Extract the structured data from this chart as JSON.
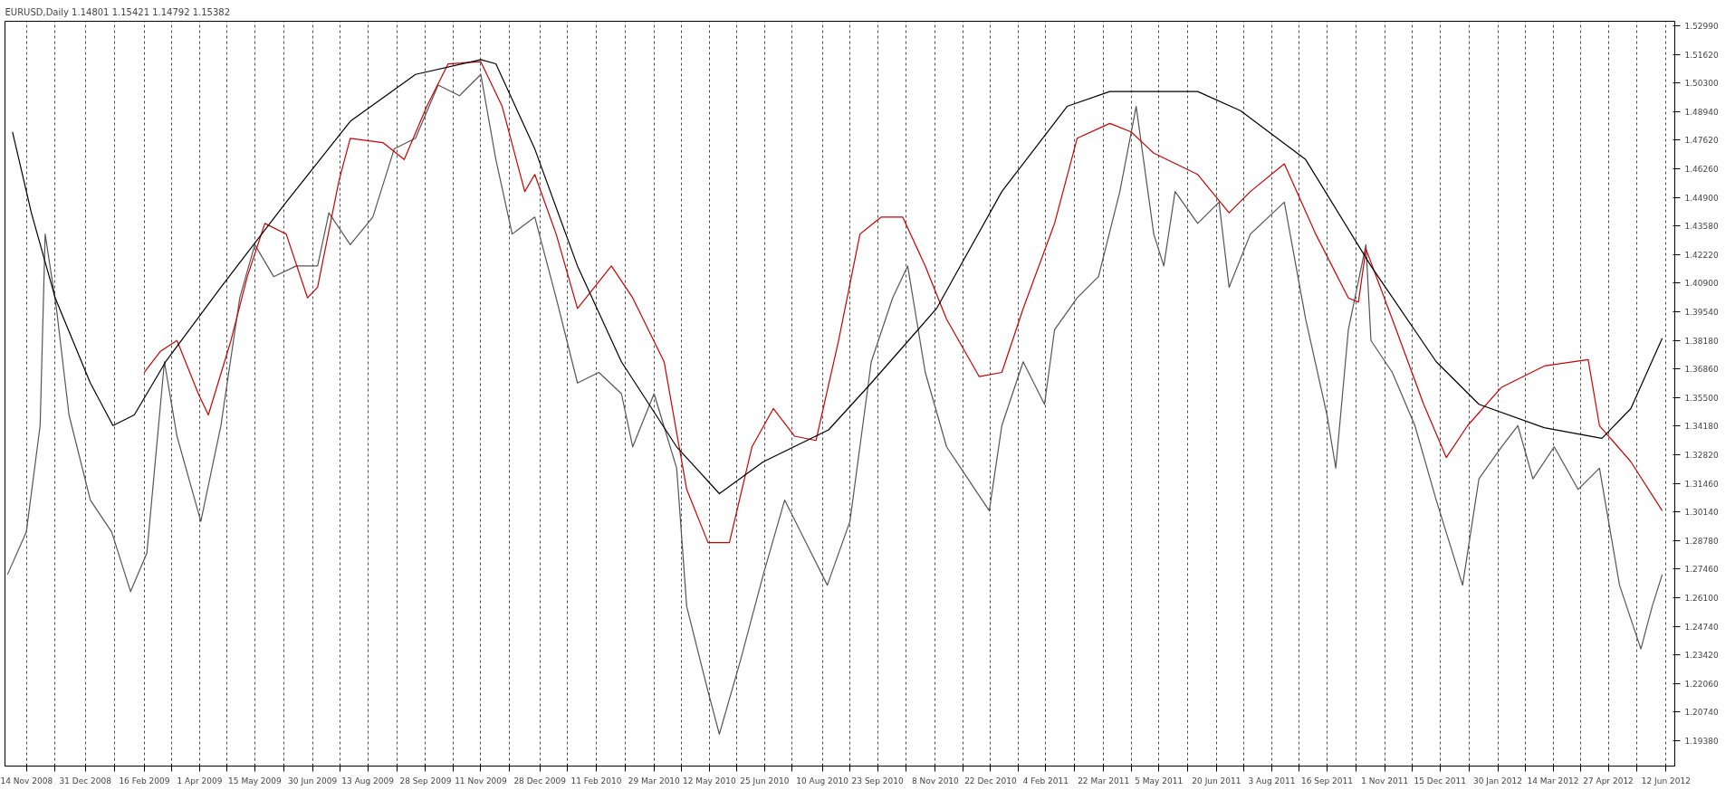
{
  "chart_data": {
    "type": "line",
    "title": "EURUSD,Daily  1.14801 1.15421 1.14792 1.15382",
    "xlim": [
      "2008-10-28",
      "2012-06-19"
    ],
    "ylim": [
      1.182,
      1.532
    ],
    "xticks": [
      {
        "value": "2008-11-14",
        "label": "14 Nov 2008"
      },
      {
        "value": "2008-12-07",
        "label": null
      },
      {
        "value": "2008-12-31",
        "label": "31 Dec 2008"
      },
      {
        "value": "2009-01-23",
        "label": null
      },
      {
        "value": "2009-02-16",
        "label": "16 Feb 2009"
      },
      {
        "value": "2009-03-10",
        "label": null
      },
      {
        "value": "2009-04-01",
        "label": "1 Apr 2009"
      },
      {
        "value": "2009-04-23",
        "label": null
      },
      {
        "value": "2009-05-15",
        "label": "15 May 2009"
      },
      {
        "value": "2009-06-07",
        "label": null
      },
      {
        "value": "2009-06-30",
        "label": "30 Jun 2009"
      },
      {
        "value": "2009-07-22",
        "label": null
      },
      {
        "value": "2009-08-13",
        "label": "13 Aug 2009"
      },
      {
        "value": "2009-09-05",
        "label": null
      },
      {
        "value": "2009-09-28",
        "label": "28 Sep 2009"
      },
      {
        "value": "2009-10-20",
        "label": null
      },
      {
        "value": "2009-11-11",
        "label": "11 Nov 2009"
      },
      {
        "value": "2009-12-04",
        "label": null
      },
      {
        "value": "2009-12-28",
        "label": "28 Dec 2009"
      },
      {
        "value": "2010-01-19",
        "label": null
      },
      {
        "value": "2010-02-11",
        "label": "11 Feb 2010"
      },
      {
        "value": "2010-03-06",
        "label": null
      },
      {
        "value": "2010-03-29",
        "label": "29 Mar 2010"
      },
      {
        "value": "2010-04-20",
        "label": null
      },
      {
        "value": "2010-05-12",
        "label": "12 May 2010"
      },
      {
        "value": "2010-06-03",
        "label": null
      },
      {
        "value": "2010-06-25",
        "label": "25 Jun 2010"
      },
      {
        "value": "2010-07-17",
        "label": null
      },
      {
        "value": "2010-08-10",
        "label": "10 Aug 2010"
      },
      {
        "value": "2010-09-01",
        "label": null
      },
      {
        "value": "2010-09-23",
        "label": "23 Sep 2010"
      },
      {
        "value": "2010-10-16",
        "label": null
      },
      {
        "value": "2010-11-08",
        "label": "8 Nov 2010"
      },
      {
        "value": "2010-11-30",
        "label": null
      },
      {
        "value": "2010-12-22",
        "label": "22 Dec 2010"
      },
      {
        "value": "2011-01-13",
        "label": null
      },
      {
        "value": "2011-02-04",
        "label": "4 Feb 2011"
      },
      {
        "value": "2011-02-27",
        "label": null
      },
      {
        "value": "2011-03-22",
        "label": "22 Mar 2011"
      },
      {
        "value": "2011-04-13",
        "label": null
      },
      {
        "value": "2011-05-05",
        "label": "5 May 2011"
      },
      {
        "value": "2011-05-28",
        "label": null
      },
      {
        "value": "2011-06-20",
        "label": "20 Jun 2011"
      },
      {
        "value": "2011-07-12",
        "label": null
      },
      {
        "value": "2011-08-03",
        "label": "3 Aug 2011"
      },
      {
        "value": "2011-08-25",
        "label": null
      },
      {
        "value": "2011-09-16",
        "label": "16 Sep 2011"
      },
      {
        "value": "2011-10-09",
        "label": null
      },
      {
        "value": "2011-11-01",
        "label": "1 Nov 2011"
      },
      {
        "value": "2011-11-23",
        "label": null
      },
      {
        "value": "2011-12-15",
        "label": "15 Dec 2011"
      },
      {
        "value": "2012-01-07",
        "label": null
      },
      {
        "value": "2012-01-30",
        "label": "30 Jan 2012"
      },
      {
        "value": "2012-02-21",
        "label": null
      },
      {
        "value": "2012-03-14",
        "label": "14 Mar 2012"
      },
      {
        "value": "2012-04-05",
        "label": null
      },
      {
        "value": "2012-04-27",
        "label": "27 Apr 2012"
      },
      {
        "value": "2012-05-20",
        "label": null
      },
      {
        "value": "2012-06-12",
        "label": "12 Jun 2012"
      }
    ],
    "yticks": [
      {
        "value": 1.5299,
        "label": "1.52990"
      },
      {
        "value": 1.5162,
        "label": "1.51620"
      },
      {
        "value": 1.503,
        "label": "1.50300"
      },
      {
        "value": 1.4894,
        "label": "1.48940"
      },
      {
        "value": 1.4762,
        "label": "1.47620"
      },
      {
        "value": 1.4626,
        "label": "1.46260"
      },
      {
        "value": 1.449,
        "label": "1.44900"
      },
      {
        "value": 1.4358,
        "label": "1.43580"
      },
      {
        "value": 1.4222,
        "label": "1.42220"
      },
      {
        "value": 1.409,
        "label": "1.40900"
      },
      {
        "value": 1.3954,
        "label": "1.39540"
      },
      {
        "value": 1.3818,
        "label": "1.38180"
      },
      {
        "value": 1.3686,
        "label": "1.36860"
      },
      {
        "value": 1.355,
        "label": "1.35500"
      },
      {
        "value": 1.3418,
        "label": "1.34180"
      },
      {
        "value": 1.3282,
        "label": "1.32820"
      },
      {
        "value": 1.3146,
        "label": "1.31460"
      },
      {
        "value": 1.3014,
        "label": "1.30140"
      },
      {
        "value": 1.2878,
        "label": "1.28780"
      },
      {
        "value": 1.2746,
        "label": "1.27460"
      },
      {
        "value": 1.261,
        "label": "1.26100"
      },
      {
        "value": 1.2474,
        "label": "1.24740"
      },
      {
        "value": 1.2342,
        "label": "1.23420"
      },
      {
        "value": 1.2206,
        "label": "1.22060"
      },
      {
        "value": 1.2074,
        "label": "1.20740"
      },
      {
        "value": 1.1938,
        "label": "1.19380"
      }
    ],
    "grid": "x",
    "line_style": "solid",
    "series": [
      {
        "color": "#555555",
        "x": [
          "2008-10-30",
          "2008-11-14",
          "2008-11-25",
          "2008-11-29",
          "2008-12-08",
          "2008-12-18",
          "2009-01-04",
          "2009-01-21",
          "2009-02-05",
          "2009-02-18",
          "2009-03-04",
          "2009-03-14",
          "2009-04-02",
          "2009-04-18",
          "2009-05-03",
          "2009-05-15",
          "2009-05-30",
          "2009-06-17",
          "2009-07-04",
          "2009-07-13",
          "2009-07-30",
          "2009-08-17",
          "2009-09-03",
          "2009-09-20",
          "2009-10-08",
          "2009-10-25",
          "2009-11-11",
          "2009-11-23",
          "2009-12-06",
          "2009-12-24",
          "2010-01-10",
          "2010-01-27",
          "2010-02-13",
          "2010-03-03",
          "2010-03-12",
          "2010-03-29",
          "2010-04-16",
          "2010-04-24",
          "2010-05-11",
          "2010-05-20",
          "2010-06-06",
          "2010-06-24",
          "2010-07-11",
          "2010-07-28",
          "2010-08-14",
          "2010-09-01",
          "2010-09-18",
          "2010-10-05",
          "2010-10-17",
          "2010-10-31",
          "2010-11-17",
          "2010-12-04",
          "2010-12-21",
          "2010-12-31",
          "2011-01-17",
          "2011-02-03",
          "2011-02-11",
          "2011-03-01",
          "2011-03-18",
          "2011-04-04",
          "2011-04-17",
          "2011-05-01",
          "2011-05-09",
          "2011-05-18",
          "2011-06-05",
          "2011-06-22",
          "2011-06-30",
          "2011-07-17",
          "2011-08-13",
          "2011-08-30",
          "2011-09-16",
          "2011-09-23",
          "2011-10-03",
          "2011-10-17",
          "2011-10-21",
          "2011-11-07",
          "2011-11-25",
          "2011-12-12",
          "2012-01-02",
          "2012-01-15",
          "2012-02-02",
          "2012-02-15",
          "2012-02-27",
          "2012-03-15",
          "2012-04-03",
          "2012-04-20",
          "2012-05-06",
          "2012-05-23",
          "2012-06-01",
          "2012-06-09"
        ],
        "values": [
          1.272,
          1.292,
          1.342,
          1.432,
          1.397,
          1.347,
          1.307,
          1.292,
          1.264,
          1.282,
          1.372,
          1.337,
          1.297,
          1.342,
          1.402,
          1.427,
          1.412,
          1.417,
          1.417,
          1.442,
          1.427,
          1.44,
          1.472,
          1.477,
          1.502,
          1.497,
          1.507,
          1.467,
          1.432,
          1.44,
          1.402,
          1.362,
          1.367,
          1.357,
          1.332,
          1.357,
          1.322,
          1.257,
          1.217,
          1.197,
          1.232,
          1.272,
          1.307,
          1.287,
          1.267,
          1.297,
          1.372,
          1.402,
          1.417,
          1.367,
          1.332,
          1.317,
          1.302,
          1.342,
          1.372,
          1.352,
          1.387,
          1.402,
          1.412,
          1.452,
          1.492,
          1.432,
          1.417,
          1.452,
          1.437,
          1.447,
          1.407,
          1.432,
          1.447,
          1.392,
          1.347,
          1.322,
          1.387,
          1.427,
          1.382,
          1.367,
          1.342,
          1.307,
          1.267,
          1.317,
          1.332,
          1.342,
          1.317,
          1.332,
          1.312,
          1.322,
          1.267,
          1.237,
          1.257,
          1.272
        ]
      },
      {
        "color": "#cc0000",
        "x": [
          "2009-02-16",
          "2009-03-01",
          "2009-03-14",
          "2009-03-31",
          "2009-04-08",
          "2009-04-26",
          "2009-05-09",
          "2009-05-23",
          "2009-06-09",
          "2009-06-26",
          "2009-07-04",
          "2009-07-21",
          "2009-07-30",
          "2009-08-25",
          "2009-09-11",
          "2009-09-29",
          "2009-10-16",
          "2009-11-11",
          "2009-11-28",
          "2009-12-16",
          "2009-12-24",
          "2010-01-10",
          "2010-01-27",
          "2010-02-23",
          "2010-03-12",
          "2010-04-06",
          "2010-04-24",
          "2010-05-11",
          "2010-05-28",
          "2010-06-15",
          "2010-07-02",
          "2010-07-19",
          "2010-08-05",
          "2010-08-23",
          "2010-09-09",
          "2010-09-26",
          "2010-10-13",
          "2010-10-31",
          "2010-11-17",
          "2010-12-13",
          "2010-12-31",
          "2011-01-17",
          "2011-02-11",
          "2011-03-01",
          "2011-03-27",
          "2011-04-13",
          "2011-05-01",
          "2011-06-05",
          "2011-06-30",
          "2011-07-17",
          "2011-08-13",
          "2011-09-07",
          "2011-10-03",
          "2011-10-11",
          "2011-10-17",
          "2011-11-07",
          "2011-12-02",
          "2011-12-20",
          "2012-01-06",
          "2012-02-02",
          "2012-03-07",
          "2012-04-11",
          "2012-04-20",
          "2012-05-15",
          "2012-06-09"
        ],
        "values": [
          1.367,
          1.377,
          1.382,
          1.357,
          1.347,
          1.382,
          1.412,
          1.437,
          1.432,
          1.402,
          1.407,
          1.457,
          1.477,
          1.475,
          1.467,
          1.492,
          1.512,
          1.513,
          1.492,
          1.452,
          1.46,
          1.432,
          1.397,
          1.417,
          1.402,
          1.372,
          1.312,
          1.287,
          1.287,
          1.332,
          1.35,
          1.337,
          1.335,
          1.382,
          1.432,
          1.44,
          1.44,
          1.417,
          1.392,
          1.365,
          1.367,
          1.397,
          1.437,
          1.477,
          1.484,
          1.48,
          1.47,
          1.46,
          1.442,
          1.452,
          1.465,
          1.432,
          1.402,
          1.4,
          1.425,
          1.392,
          1.352,
          1.327,
          1.342,
          1.36,
          1.37,
          1.373,
          1.342,
          1.325,
          1.302
        ]
      },
      {
        "color": "#000000",
        "x": [
          "2008-11-03",
          "2008-11-18",
          "2008-12-07",
          "2009-01-04",
          "2009-01-22",
          "2009-02-08",
          "2009-03-05",
          "2009-04-18",
          "2009-06-09",
          "2009-07-30",
          "2009-09-20",
          "2009-11-11",
          "2009-11-23",
          "2009-12-24",
          "2010-01-27",
          "2010-03-03",
          "2010-04-16",
          "2010-05-20",
          "2010-06-24",
          "2010-08-15",
          "2010-09-18",
          "2010-11-09",
          "2010-12-31",
          "2011-02-21",
          "2011-03-27",
          "2011-06-05",
          "2011-07-09",
          "2011-08-30",
          "2011-10-21",
          "2011-12-12",
          "2012-01-15",
          "2012-03-07",
          "2012-04-22",
          "2012-05-15",
          "2012-06-09"
        ],
        "values": [
          1.48,
          1.442,
          1.402,
          1.362,
          1.342,
          1.347,
          1.372,
          1.407,
          1.447,
          1.485,
          1.507,
          1.514,
          1.512,
          1.472,
          1.417,
          1.372,
          1.332,
          1.31,
          1.325,
          1.34,
          1.362,
          1.397,
          1.452,
          1.492,
          1.499,
          1.499,
          1.49,
          1.467,
          1.417,
          1.372,
          1.352,
          1.341,
          1.336,
          1.35,
          1.383
        ]
      }
    ]
  }
}
